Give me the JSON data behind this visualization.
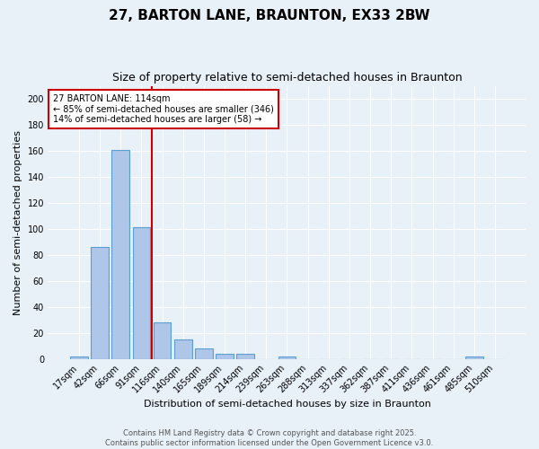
{
  "title1": "27, BARTON LANE, BRAUNTON, EX33 2BW",
  "title2": "Size of property relative to semi-detached houses in Braunton",
  "xlabel": "Distribution of semi-detached houses by size in Braunton",
  "ylabel": "Number of semi-detached properties",
  "footer1": "Contains HM Land Registry data © Crown copyright and database right 2025.",
  "footer2": "Contains public sector information licensed under the Open Government Licence v3.0.",
  "bin_labels": [
    "17sqm",
    "42sqm",
    "66sqm",
    "91sqm",
    "116sqm",
    "140sqm",
    "165sqm",
    "189sqm",
    "214sqm",
    "239sqm",
    "263sqm",
    "288sqm",
    "313sqm",
    "337sqm",
    "362sqm",
    "387sqm",
    "411sqm",
    "436sqm",
    "461sqm",
    "485sqm",
    "510sqm"
  ],
  "bin_values": [
    2,
    86,
    161,
    101,
    28,
    15,
    8,
    4,
    4,
    0,
    2,
    0,
    0,
    0,
    0,
    0,
    0,
    0,
    0,
    2,
    0
  ],
  "bar_color": "#aec6e8",
  "bar_edge_color": "#5a9fd4",
  "background_color": "#e8f0f8",
  "grid_color": "#ffffff",
  "vline_color": "#cc0000",
  "annotation_title": "27 BARTON LANE: 114sqm",
  "annotation_line1": "← 85% of semi-detached houses are smaller (346)",
  "annotation_line2": "14% of semi-detached houses are larger (58) →",
  "annotation_box_color": "#ffffff",
  "annotation_box_edge": "#cc0000",
  "ylim": [
    0,
    210
  ],
  "yticks": [
    0,
    20,
    40,
    60,
    80,
    100,
    120,
    140,
    160,
    180,
    200
  ],
  "title1_fontsize": 11,
  "title2_fontsize": 9,
  "xlabel_fontsize": 8,
  "ylabel_fontsize": 8,
  "tick_fontsize": 7,
  "footer_fontsize": 6
}
